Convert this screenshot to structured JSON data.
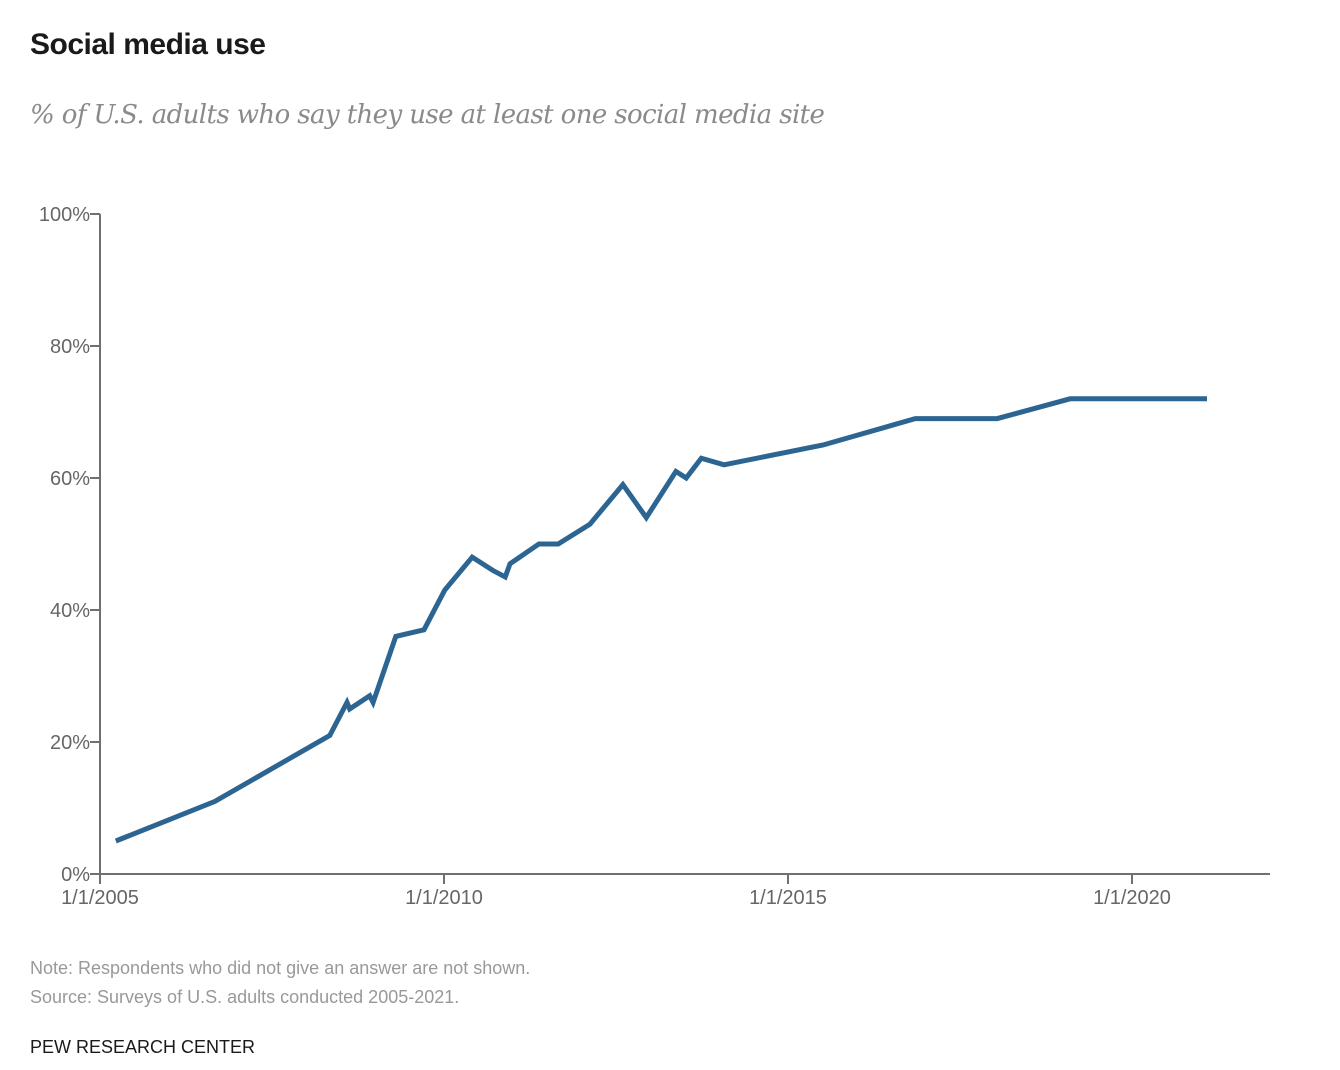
{
  "chart_data": {
    "type": "line",
    "title": "Social media use",
    "subtitle": "% of U.S. adults who say they use at least one social media site",
    "xlabel": "",
    "ylabel": "",
    "ylim": [
      0,
      100
    ],
    "xlim": [
      2005.0,
      2022.0
    ],
    "yticks": [
      0,
      20,
      40,
      60,
      80,
      100
    ],
    "ytick_labels": [
      "0%",
      "20%",
      "40%",
      "60%",
      "80%",
      "100%"
    ],
    "xticks": [
      2005,
      2010,
      2015,
      2020
    ],
    "xtick_labels": [
      "1/1/2005",
      "1/1/2010",
      "1/1/2015",
      "1/1/2020"
    ],
    "grid": false,
    "legend": "none",
    "line_color": "#2c6592",
    "series": [
      {
        "name": "Use at least one social media site",
        "x": [
          2005.23,
          2006.67,
          2008.34,
          2008.59,
          2008.63,
          2008.92,
          2008.97,
          2009.3,
          2009.71,
          2010.01,
          2010.41,
          2010.71,
          2010.89,
          2010.96,
          2011.38,
          2011.66,
          2012.12,
          2012.6,
          2012.94,
          2013.37,
          2013.52,
          2013.74,
          2014.07,
          2015.51,
          2016.85,
          2018.04,
          2019.1,
          2021.09
        ],
        "y": [
          5,
          11,
          21,
          26,
          25,
          27,
          26,
          36,
          37,
          43,
          48,
          46,
          45,
          47,
          50,
          50,
          53,
          59,
          54,
          61,
          60,
          63,
          62,
          65,
          69,
          69,
          72,
          72
        ]
      }
    ]
  },
  "notes": {
    "note": "Note: Respondents who did not give an answer are not shown.",
    "source": "Source: Surveys of U.S. adults conducted 2005-2021.",
    "brand": "PEW RESEARCH CENTER"
  }
}
